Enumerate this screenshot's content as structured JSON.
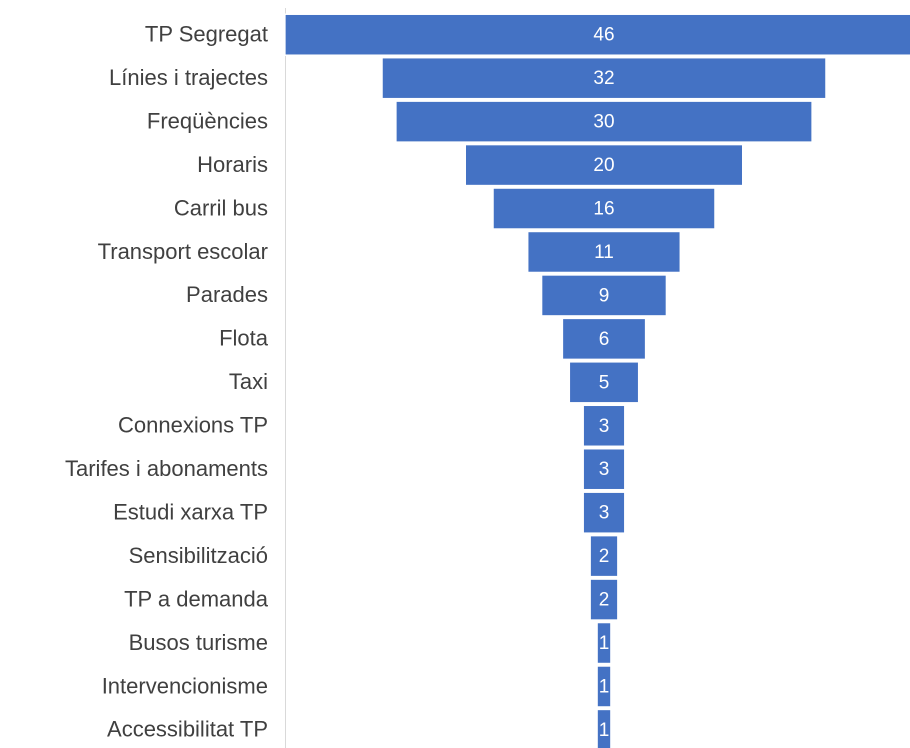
{
  "chart_data": {
    "type": "funnel",
    "categories": [
      "TP Segregat",
      "Línies i trajectes",
      "Freqüències",
      "Horaris",
      "Carril bus",
      "Transport escolar",
      "Parades",
      "Flota",
      "Taxi",
      "Connexions TP",
      "Tarifes i abonaments",
      "Estudi xarxa TP",
      "Sensibilització",
      "TP a demanda",
      "Busos turisme",
      "Intervencionisme",
      "Accessibilitat TP"
    ],
    "values": [
      46,
      32,
      30,
      20,
      16,
      11,
      9,
      6,
      5,
      3,
      3,
      3,
      2,
      2,
      1,
      1,
      1
    ],
    "color": "#4472c4"
  }
}
